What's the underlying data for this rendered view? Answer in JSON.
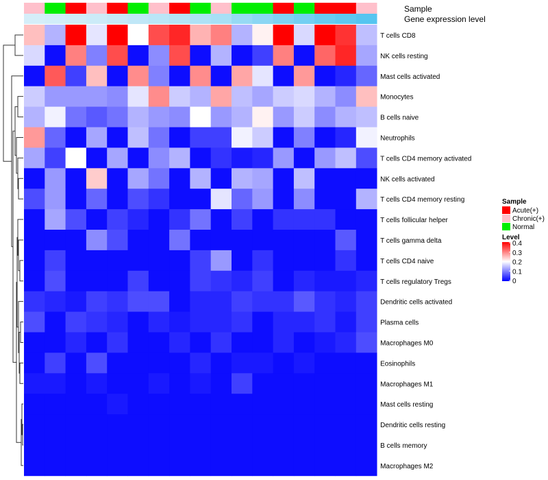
{
  "chart_data": {
    "type": "heatmap",
    "annotation_tracks": [
      "Sample",
      "Gene expression level"
    ],
    "sample_groups": [
      "Chronic(+)",
      "Normal",
      "Acute(+)",
      "Chronic(+)",
      "Acute(+)",
      "Normal",
      "Chronic(+)",
      "Acute(+)",
      "Normal",
      "Chronic(+)",
      "Normal",
      "Normal",
      "Acute(+)",
      "Normal",
      "Acute(+)",
      "Acute(+)",
      "Chronic(+)"
    ],
    "expression_track": [
      0.1,
      0.12,
      0.14,
      0.16,
      0.2,
      0.24,
      0.28,
      0.32,
      0.36,
      0.4,
      0.52,
      0.6,
      0.68,
      0.76,
      0.84,
      0.9,
      0.95
    ],
    "rows": [
      "T cells CD8",
      "NK cells resting",
      "Mast cells activated",
      "Monocytes",
      "B cells naive",
      "Neutrophils",
      "T cells CD4 memory activated",
      "NK cells activated",
      "T cells CD4 memory resting",
      "T cells follicular helper",
      "T cells gamma delta",
      "T cells CD4 naive",
      "T cells regulatory  Tregs",
      "Dendritic cells activated",
      "Plasma cells",
      "Macrophages M0",
      "Eosinophils",
      "Macrophages M1",
      "Mast cells resting",
      "Dendritic cells resting",
      "B cells memory",
      "Macrophages M2"
    ],
    "values": [
      [
        0.25,
        0.14,
        0.4,
        0.18,
        0.4,
        0.2,
        0.34,
        0.37,
        0.26,
        0.3,
        0.14,
        0.21,
        0.4,
        0.17,
        0.4,
        0.36,
        0.15
      ],
      [
        0.17,
        0.01,
        0.3,
        0.1,
        0.34,
        0.01,
        0.11,
        0.34,
        0.01,
        0.14,
        0.01,
        0.05,
        0.3,
        0.01,
        0.32,
        0.37,
        0.13
      ],
      [
        0.01,
        0.33,
        0.05,
        0.25,
        0.01,
        0.29,
        0.1,
        0.01,
        0.29,
        0.01,
        0.27,
        0.18,
        0.01,
        0.28,
        0.01,
        0.03,
        0.08
      ],
      [
        0.16,
        0.12,
        0.12,
        0.12,
        0.11,
        0.18,
        0.29,
        0.16,
        0.14,
        0.27,
        0.15,
        0.13,
        0.16,
        0.17,
        0.14,
        0.11,
        0.25
      ],
      [
        0.14,
        0.19,
        0.09,
        0.07,
        0.09,
        0.14,
        0.12,
        0.11,
        0.2,
        0.12,
        0.14,
        0.21,
        0.12,
        0.16,
        0.11,
        0.14,
        0.15
      ],
      [
        0.28,
        0.08,
        0.01,
        0.13,
        0.01,
        0.15,
        0.09,
        0.01,
        0.05,
        0.05,
        0.19,
        0.16,
        0.01,
        0.1,
        0.01,
        0.03,
        0.19
      ],
      [
        0.13,
        0.05,
        0.2,
        0.01,
        0.13,
        0.01,
        0.11,
        0.14,
        0.01,
        0.04,
        0.02,
        0.03,
        0.12,
        0.01,
        0.12,
        0.15,
        0.06
      ],
      [
        0.01,
        0.12,
        0.01,
        0.24,
        0.01,
        0.13,
        0.09,
        0.01,
        0.14,
        0.01,
        0.14,
        0.13,
        0.01,
        0.15,
        0.01,
        0.01,
        0.01
      ],
      [
        0.06,
        0.12,
        0.01,
        0.08,
        0.01,
        0.06,
        0.04,
        0.01,
        0.01,
        0.18,
        0.08,
        0.12,
        0.01,
        0.11,
        0.01,
        0.01,
        0.14
      ],
      [
        0.01,
        0.13,
        0.06,
        0.01,
        0.05,
        0.03,
        0.01,
        0.04,
        0.09,
        0.01,
        0.05,
        0.01,
        0.04,
        0.04,
        0.04,
        0.01,
        0.01
      ],
      [
        0.01,
        0.01,
        0.01,
        0.11,
        0.06,
        0.01,
        0.01,
        0.09,
        0.01,
        0.01,
        0.01,
        0.01,
        0.01,
        0.01,
        0.01,
        0.07,
        0.01
      ],
      [
        0.01,
        0.05,
        0.01,
        0.01,
        0.01,
        0.01,
        0.01,
        0.01,
        0.05,
        0.12,
        0.01,
        0.04,
        0.01,
        0.01,
        0.01,
        0.04,
        0.01
      ],
      [
        0.01,
        0.06,
        0.01,
        0.01,
        0.01,
        0.05,
        0.01,
        0.01,
        0.05,
        0.04,
        0.03,
        0.05,
        0.01,
        0.03,
        0.02,
        0.02,
        0.03
      ],
      [
        0.04,
        0.03,
        0.02,
        0.05,
        0.04,
        0.06,
        0.06,
        0.01,
        0.03,
        0.03,
        0.05,
        0.04,
        0.04,
        0.07,
        0.04,
        0.03,
        0.05
      ],
      [
        0.06,
        0.01,
        0.05,
        0.04,
        0.03,
        0.01,
        0.03,
        0.02,
        0.03,
        0.03,
        0.04,
        0.01,
        0.03,
        0.03,
        0.04,
        0.02,
        0.05
      ],
      [
        0.01,
        0.01,
        0.03,
        0.01,
        0.04,
        0.01,
        0.01,
        0.03,
        0.01,
        0.04,
        0.01,
        0.01,
        0.03,
        0.01,
        0.02,
        0.03,
        0.06
      ],
      [
        0.01,
        0.05,
        0.01,
        0.06,
        0.01,
        0.01,
        0.01,
        0.01,
        0.03,
        0.01,
        0.02,
        0.02,
        0.01,
        0.02,
        0.01,
        0.01,
        0.01
      ],
      [
        0.02,
        0.02,
        0.01,
        0.02,
        0.01,
        0.01,
        0.02,
        0.01,
        0.02,
        0.01,
        0.05,
        0.01,
        0.01,
        0.01,
        0.01,
        0.01,
        0.01
      ],
      [
        0.01,
        0.01,
        0.01,
        0.01,
        0.02,
        0.01,
        0.01,
        0.01,
        0.01,
        0.01,
        0.01,
        0.01,
        0.01,
        0.01,
        0.01,
        0.01,
        0.01
      ],
      [
        0.01,
        0.01,
        0.01,
        0.01,
        0.01,
        0.01,
        0.01,
        0.01,
        0.01,
        0.01,
        0.01,
        0.01,
        0.01,
        0.01,
        0.01,
        0.01,
        0.01
      ],
      [
        0.01,
        0.01,
        0.01,
        0.01,
        0.01,
        0.01,
        0.01,
        0.01,
        0.01,
        0.01,
        0.01,
        0.01,
        0.01,
        0.01,
        0.01,
        0.01,
        0.01
      ],
      [
        0.01,
        0.01,
        0.01,
        0.01,
        0.01,
        0.01,
        0.01,
        0.01,
        0.01,
        0.01,
        0.01,
        0.01,
        0.01,
        0.01,
        0.01,
        0.01,
        0.01
      ]
    ],
    "legend": {
      "sample_title": "Sample",
      "sample_entries": [
        {
          "label": "Acute(+)",
          "color": "#ff0000"
        },
        {
          "label": "Chronic(+)",
          "color": "#ffc0cb"
        },
        {
          "label": "Normal",
          "color": "#00ee00"
        }
      ],
      "level_title": "Level",
      "level_ticks": [
        "0.4",
        "0.3",
        "0.2",
        "0.1",
        "0"
      ],
      "range": [
        0,
        0.4
      ]
    },
    "colors": {
      "low": "#0000ff",
      "mid": "#ffffff",
      "high": "#ff0000",
      "expr_low": "#e4f3fa",
      "expr_high": "#4fc3ef"
    }
  }
}
